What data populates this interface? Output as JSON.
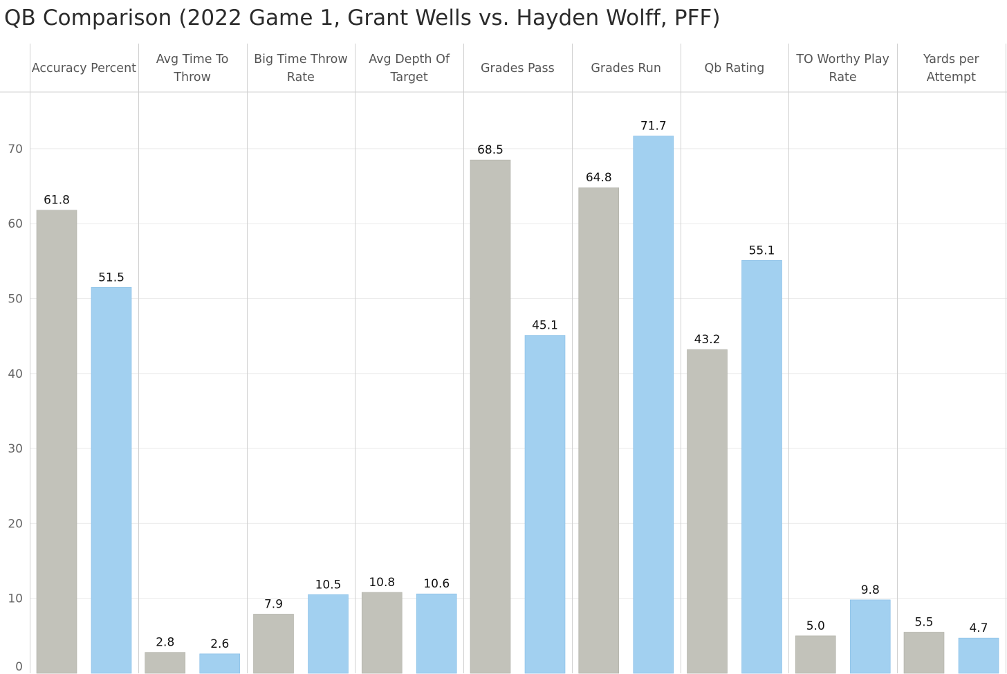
{
  "title": "QB Comparison (2022 Game 1, Grant Wells vs. Hayden Wolff, PFF)",
  "chart_data": {
    "type": "bar",
    "title": "QB Comparison (2022 Game 1, Grant Wells vs. Hayden Wolff, PFF)",
    "categories": [
      "Accuracy Percent",
      "Avg Time To Throw",
      "Big Time Throw Rate",
      "Avg Depth Of Target",
      "Grades Pass",
      "Grades Run",
      "Qb Rating",
      "TO Worthy Play Rate",
      "Yards per Attempt"
    ],
    "header_lines": [
      [
        "Accuracy Percent"
      ],
      [
        "Avg Time To",
        "Throw"
      ],
      [
        "Big Time Throw",
        "Rate"
      ],
      [
        "Avg Depth Of",
        "Target"
      ],
      [
        "Grades Pass"
      ],
      [
        "Grades Run"
      ],
      [
        "Qb Rating"
      ],
      [
        "TO Worthy Play",
        "Rate"
      ],
      [
        "Yards per",
        "Attempt"
      ]
    ],
    "series": [
      {
        "color": "#c2c2ba",
        "values": [
          61.8,
          2.8,
          7.9,
          10.8,
          68.5,
          64.8,
          43.2,
          5.0,
          5.5
        ]
      },
      {
        "color": "#a2d0f0",
        "values": [
          51.5,
          2.6,
          10.5,
          10.6,
          45.1,
          71.7,
          55.1,
          9.8,
          4.7
        ]
      }
    ],
    "ylim": [
      0,
      78
    ],
    "yticks": [
      0,
      10,
      20,
      30,
      40,
      50,
      60,
      70
    ],
    "value_decimals": 1,
    "grid": true,
    "legend": "none",
    "xlabel": "",
    "ylabel": ""
  }
}
